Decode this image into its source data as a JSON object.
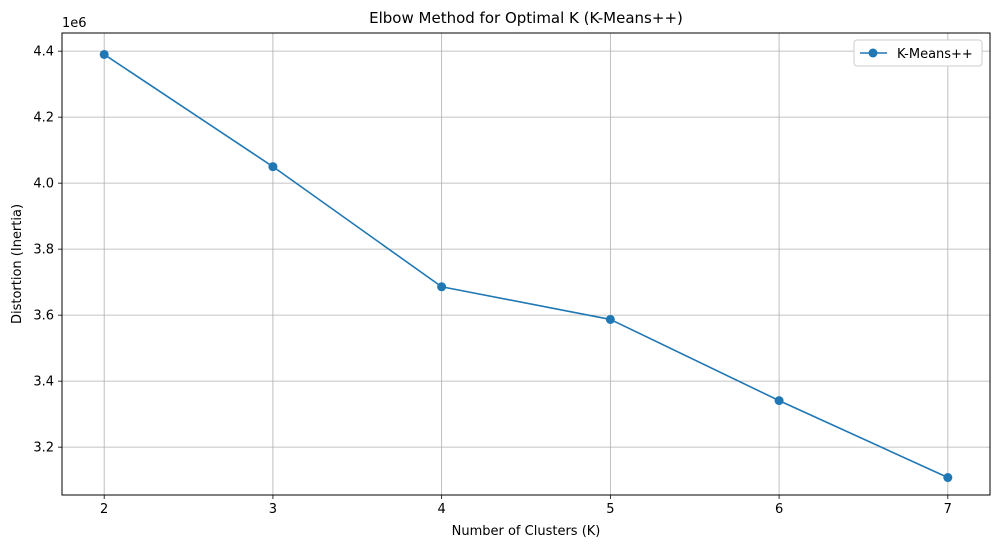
{
  "chart_data": {
    "type": "line",
    "title": "Elbow Method for Optimal K (K-Means++)",
    "xlabel": "Number of Clusters (K)",
    "ylabel": "Distortion (Inertia)",
    "y_offset_label": "1e6",
    "xlim": [
      1.75,
      7.25
    ],
    "ylim": [
      3.055,
      4.455
    ],
    "x_ticks": [
      2,
      3,
      4,
      5,
      6,
      7
    ],
    "y_ticks": [
      3.2,
      3.4,
      3.6,
      3.8,
      4.0,
      4.2,
      4.4
    ],
    "y_tick_labels": [
      "3.2",
      "3.4",
      "3.6",
      "3.8",
      "4.0",
      "4.2",
      "4.4"
    ],
    "grid": true,
    "legend_position": "top-right",
    "series": [
      {
        "name": "K-Means++",
        "color": "#1f77b4",
        "marker": "circle",
        "x": [
          2,
          3,
          4,
          5,
          6,
          7
        ],
        "y": [
          4.39,
          4.05,
          3.686,
          3.587,
          3.341,
          3.108
        ]
      }
    ]
  }
}
